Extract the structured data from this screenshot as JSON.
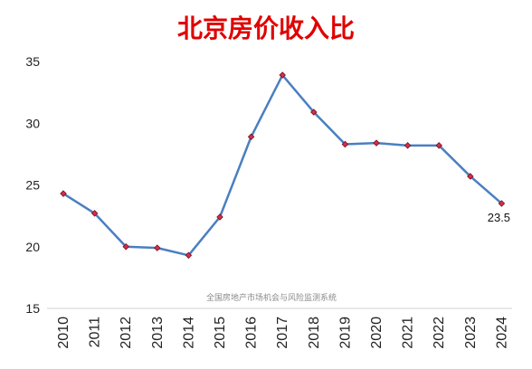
{
  "chart_data": {
    "type": "line",
    "title": "北京房价收入比",
    "xlabel": "",
    "ylabel": "",
    "categories": [
      "2010",
      "2011",
      "2012",
      "2013",
      "2014",
      "2015",
      "2016",
      "2017",
      "2018",
      "2019",
      "2020",
      "2021",
      "2022",
      "2023",
      "2024"
    ],
    "series": [
      {
        "values": [
          24.3,
          22.7,
          20.0,
          19.9,
          19.3,
          22.4,
          28.9,
          33.9,
          30.9,
          28.3,
          28.4,
          28.2,
          28.2,
          25.7,
          23.5
        ]
      }
    ],
    "ylim": [
      15,
      35
    ],
    "yticks": [
      15,
      20,
      25,
      30,
      35
    ],
    "data_labels": [
      {
        "index": 14,
        "text": "23.5"
      }
    ],
    "watermark": "全国房地产市场机会与风险监测系统",
    "grid": false,
    "legend": "none",
    "colors": {
      "title": "#e00000",
      "line": "#4a7fc1",
      "marker_fill": "#d0304a",
      "marker_stroke": "#7a1020",
      "axis": "#d0d0d0"
    }
  }
}
